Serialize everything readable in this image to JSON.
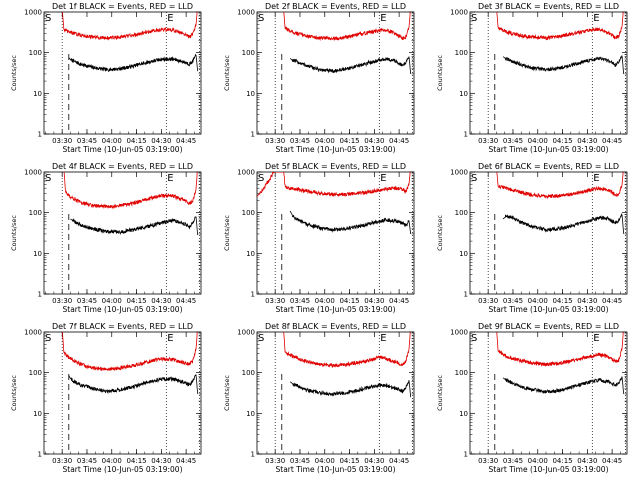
{
  "chart_data": [
    {
      "type": "line",
      "title": "Det 1f BLACK = Events, RED = LLD",
      "xlabel": "Start Time (10-Jun-05 03:19:00)",
      "ylabel": "Counts/sec",
      "yscale": "log",
      "ylim": [
        1,
        1000
      ],
      "yticks": [
        "1",
        "10",
        "100",
        "1000"
      ],
      "xticks": [
        "03:30",
        "03:45",
        "04:00",
        "04:15",
        "04:30",
        "04:45"
      ],
      "xlim_min": [
        0,
        95
      ],
      "markers": [
        "S",
        "E"
      ],
      "series": [
        {
          "color": "#000000",
          "x": [
            15,
            16,
            18,
            22,
            30,
            38,
            46,
            54,
            62,
            70,
            78,
            86,
            88,
            90,
            92,
            93
          ],
          "y": [
            75,
            68,
            62,
            52,
            43,
            38,
            40,
            47,
            57,
            68,
            70,
            57,
            52,
            62,
            88,
            35
          ]
        },
        {
          "color": "#e00000",
          "x": [
            11,
            12,
            14,
            18,
            22,
            30,
            38,
            46,
            54,
            62,
            70,
            78,
            86,
            88,
            90,
            92,
            93
          ],
          "y": [
            1200,
            380,
            330,
            300,
            270,
            240,
            230,
            240,
            270,
            320,
            370,
            360,
            270,
            250,
            280,
            480,
            1500
          ]
        }
      ]
    },
    {
      "type": "line",
      "title": "Det 2f BLACK = Events, RED = LLD",
      "xlabel": "Start Time (10-Jun-05 03:19:00)",
      "ylabel": "Counts/sec",
      "yscale": "log",
      "ylim": [
        1,
        1000
      ],
      "yticks": [
        "1",
        "10",
        "100",
        "1000"
      ],
      "xticks": [
        "03:30",
        "03:45",
        "04:00",
        "04:15",
        "04:30",
        "04:45"
      ],
      "xlim_min": [
        0,
        95
      ],
      "markers": [
        "S",
        "E"
      ],
      "series": [
        {
          "color": "#000000",
          "x": [
            20,
            22,
            26,
            30,
            38,
            46,
            54,
            62,
            70,
            78,
            84,
            88,
            90,
            92,
            93
          ],
          "y": [
            72,
            64,
            56,
            48,
            38,
            35,
            40,
            48,
            60,
            70,
            62,
            48,
            58,
            80,
            30
          ]
        },
        {
          "color": "#e00000",
          "x": [
            16,
            17,
            20,
            24,
            30,
            38,
            46,
            54,
            62,
            70,
            78,
            84,
            88,
            90,
            92,
            93
          ],
          "y": [
            1300,
            400,
            340,
            300,
            260,
            230,
            220,
            240,
            280,
            330,
            370,
            300,
            220,
            240,
            420,
            1400
          ]
        }
      ]
    },
    {
      "type": "line",
      "title": "Det 3f BLACK = Events, RED = LLD",
      "xlabel": "Start Time (10-Jun-05 03:19:00)",
      "ylabel": "Counts/sec",
      "yscale": "log",
      "ylim": [
        1,
        1000
      ],
      "yticks": [
        "1",
        "10",
        "100",
        "1000"
      ],
      "xticks": [
        "03:30",
        "03:45",
        "04:00",
        "04:15",
        "04:30",
        "04:45"
      ],
      "xlim_min": [
        0,
        95
      ],
      "markers": [
        "S",
        "E"
      ],
      "series": [
        {
          "color": "#000000",
          "x": [
            20,
            22,
            26,
            30,
            38,
            46,
            54,
            62,
            70,
            78,
            84,
            88,
            90,
            92,
            93
          ],
          "y": [
            80,
            70,
            60,
            52,
            42,
            38,
            42,
            50,
            62,
            72,
            62,
            50,
            60,
            85,
            30
          ]
        },
        {
          "color": "#e00000",
          "x": [
            16,
            17,
            20,
            24,
            30,
            38,
            46,
            54,
            62,
            70,
            78,
            84,
            88,
            90,
            92,
            93
          ],
          "y": [
            1300,
            420,
            350,
            310,
            270,
            240,
            230,
            250,
            290,
            340,
            380,
            300,
            230,
            250,
            440,
            1400
          ]
        }
      ]
    },
    {
      "type": "line",
      "title": "Det 4f BLACK = Events, RED = LLD",
      "xlabel": "Start Time (10-Jun-05 03:19:00)",
      "ylabel": "Counts/sec",
      "yscale": "log",
      "ylim": [
        1,
        1000
      ],
      "yticks": [
        "1",
        "10",
        "100",
        "1000"
      ],
      "xticks": [
        "03:30",
        "03:45",
        "04:00",
        "04:15",
        "04:30",
        "04:45"
      ],
      "xlim_min": [
        0,
        95
      ],
      "markers": [
        "S",
        "E"
      ],
      "series": [
        {
          "color": "#000000",
          "x": [
            16,
            18,
            22,
            30,
            38,
            46,
            54,
            62,
            70,
            78,
            86,
            88,
            90,
            92,
            93
          ],
          "y": [
            70,
            62,
            50,
            40,
            34,
            33,
            38,
            45,
            55,
            65,
            52,
            45,
            55,
            80,
            28
          ]
        },
        {
          "color": "#e00000",
          "x": [
            12,
            13,
            15,
            18,
            22,
            30,
            38,
            46,
            54,
            62,
            70,
            78,
            86,
            88,
            90,
            92,
            93
          ],
          "y": [
            1250,
            330,
            260,
            220,
            180,
            150,
            140,
            150,
            170,
            210,
            260,
            260,
            190,
            170,
            190,
            380,
            1400
          ]
        }
      ]
    },
    {
      "type": "line",
      "title": "Det 5f BLACK = Events, RED = LLD",
      "xlabel": "Start Time (10-Jun-05 03:19:00)",
      "ylabel": "Counts/sec",
      "yscale": "log",
      "ylim": [
        1,
        1000
      ],
      "yticks": [
        "1",
        "10",
        "100",
        "1000"
      ],
      "xticks": [
        "03:30",
        "03:45",
        "04:00",
        "04:15",
        "04:30",
        "04:45"
      ],
      "xlim_min": [
        0,
        95
      ],
      "markers": [
        "S",
        "E"
      ],
      "series": [
        {
          "color": "#000000",
          "x": [
            20,
            22,
            26,
            30,
            38,
            46,
            54,
            62,
            70,
            78,
            84,
            88,
            90,
            92,
            93
          ],
          "y": [
            110,
            80,
            62,
            52,
            42,
            38,
            40,
            46,
            56,
            66,
            62,
            55,
            48,
            62,
            30
          ]
        },
        {
          "color": "#e00000",
          "x": [
            0,
            4,
            8,
            12,
            16,
            17,
            19,
            22,
            26,
            30,
            38,
            46,
            54,
            62,
            70,
            78,
            84,
            88,
            90,
            92,
            93
          ],
          "y": [
            250,
            400,
            700,
            1300,
            1200,
            450,
            400,
            380,
            360,
            340,
            300,
            280,
            280,
            300,
            340,
            380,
            400,
            380,
            320,
            500,
            1400
          ]
        }
      ]
    },
    {
      "type": "line",
      "title": "Det 6f BLACK = Events, RED = LLD",
      "xlabel": "Start Time (10-Jun-05 03:19:00)",
      "ylabel": "Counts/sec",
      "yscale": "log",
      "ylim": [
        1,
        1000
      ],
      "yticks": [
        "1",
        "10",
        "100",
        "1000"
      ],
      "xticks": [
        "03:30",
        "03:45",
        "04:00",
        "04:15",
        "04:30",
        "04:45"
      ],
      "xlim_min": [
        0,
        95
      ],
      "markers": [
        "S",
        "E"
      ],
      "series": [
        {
          "color": "#000000",
          "x": [
            20,
            22,
            26,
            30,
            38,
            46,
            54,
            62,
            70,
            78,
            84,
            88,
            90,
            92,
            93
          ],
          "y": [
            70,
            82,
            75,
            60,
            45,
            38,
            40,
            48,
            60,
            75,
            70,
            55,
            65,
            90,
            30
          ]
        },
        {
          "color": "#e00000",
          "x": [
            16,
            17,
            20,
            24,
            30,
            38,
            46,
            54,
            62,
            70,
            78,
            84,
            88,
            90,
            92,
            93
          ],
          "y": [
            1300,
            450,
            420,
            380,
            320,
            270,
            250,
            260,
            290,
            340,
            400,
            360,
            270,
            280,
            480,
            1400
          ]
        }
      ]
    },
    {
      "type": "line",
      "title": "Det 7f BLACK = Events, RED = LLD",
      "xlabel": "Start Time (10-Jun-05 03:19:00)",
      "ylabel": "Counts/sec",
      "yscale": "log",
      "ylim": [
        1,
        1000
      ],
      "yticks": [
        "1",
        "10",
        "100",
        "1000"
      ],
      "xticks": [
        "03:30",
        "03:45",
        "04:00",
        "04:15",
        "04:30",
        "04:45"
      ],
      "xlim_min": [
        0,
        95
      ],
      "markers": [
        "S",
        "E"
      ],
      "series": [
        {
          "color": "#000000",
          "x": [
            15,
            16,
            18,
            22,
            30,
            38,
            46,
            54,
            62,
            70,
            78,
            86,
            88,
            90,
            92,
            93
          ],
          "y": [
            85,
            72,
            62,
            50,
            40,
            35,
            38,
            45,
            56,
            68,
            70,
            55,
            50,
            62,
            90,
            30
          ]
        },
        {
          "color": "#e00000",
          "x": [
            11,
            12,
            14,
            18,
            22,
            30,
            38,
            46,
            54,
            62,
            70,
            78,
            86,
            88,
            90,
            92,
            93
          ],
          "y": [
            1250,
            320,
            250,
            200,
            160,
            130,
            120,
            130,
            150,
            180,
            220,
            210,
            170,
            160,
            190,
            380,
            1400
          ]
        }
      ]
    },
    {
      "type": "line",
      "title": "Det 8f BLACK = Events, RED = LLD",
      "xlabel": "Start Time (10-Jun-05 03:19:00)",
      "ylabel": "Counts/sec",
      "yscale": "log",
      "ylim": [
        1,
        1000
      ],
      "yticks": [
        "1",
        "10",
        "100",
        "1000"
      ],
      "xticks": [
        "03:30",
        "03:45",
        "04:00",
        "04:15",
        "04:30",
        "04:45"
      ],
      "xlim_min": [
        0,
        95
      ],
      "markers": [
        "S",
        "E"
      ],
      "series": [
        {
          "color": "#000000",
          "x": [
            20,
            22,
            26,
            30,
            38,
            46,
            54,
            62,
            70,
            74,
            78,
            84,
            88,
            90,
            92,
            93
          ],
          "y": [
            60,
            52,
            45,
            38,
            32,
            30,
            32,
            38,
            45,
            50,
            48,
            40,
            35,
            42,
            65,
            25
          ]
        },
        {
          "color": "#e00000",
          "x": [
            16,
            17,
            20,
            24,
            30,
            38,
            46,
            54,
            62,
            70,
            74,
            78,
            84,
            88,
            90,
            92,
            93
          ],
          "y": [
            1300,
            320,
            270,
            230,
            190,
            160,
            150,
            160,
            180,
            210,
            240,
            220,
            180,
            160,
            190,
            380,
            1400
          ]
        }
      ]
    },
    {
      "type": "line",
      "title": "Det 9f BLACK = Events, RED = LLD",
      "xlabel": "Start Time (10-Jun-05 03:19:00)",
      "ylabel": "Counts/sec",
      "yscale": "log",
      "ylim": [
        1,
        1000
      ],
      "yticks": [
        "1",
        "10",
        "100",
        "1000"
      ],
      "xticks": [
        "03:30",
        "03:45",
        "04:00",
        "04:15",
        "04:30",
        "04:45"
      ],
      "xlim_min": [
        0,
        95
      ],
      "markers": [
        "S",
        "E"
      ],
      "series": [
        {
          "color": "#000000",
          "x": [
            20,
            22,
            26,
            30,
            38,
            46,
            54,
            62,
            70,
            78,
            84,
            88,
            90,
            92,
            93
          ],
          "y": [
            75,
            65,
            55,
            46,
            38,
            34,
            36,
            44,
            55,
            66,
            60,
            48,
            56,
            80,
            30
          ]
        },
        {
          "color": "#e00000",
          "x": [
            16,
            17,
            20,
            24,
            30,
            38,
            46,
            54,
            62,
            70,
            78,
            84,
            88,
            90,
            92,
            93
          ],
          "y": [
            1300,
            340,
            280,
            240,
            200,
            170,
            160,
            170,
            200,
            240,
            280,
            250,
            190,
            200,
            380,
            1400
          ]
        }
      ]
    }
  ]
}
